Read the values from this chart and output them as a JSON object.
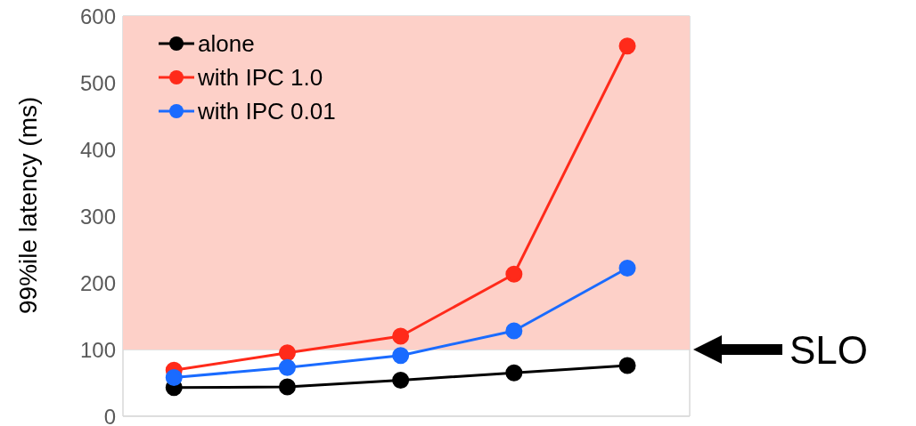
{
  "chart_data": {
    "type": "line",
    "ylabel": "99%ile latency (ms)",
    "categories": [
      null,
      null,
      null,
      null,
      null
    ],
    "series": [
      {
        "name": "alone",
        "color": "#000000",
        "values": [
          43,
          44,
          54,
          65,
          76
        ]
      },
      {
        "name": "with IPC 1.0",
        "color": "#ff2a1a",
        "values": [
          69,
          95,
          120,
          213,
          555
        ]
      },
      {
        "name": "with IPC 0.01",
        "color": "#1a6bff",
        "values": [
          58,
          73,
          91,
          128,
          222
        ]
      }
    ],
    "ylim": [
      0,
      600
    ],
    "yticks": [
      0,
      100,
      200,
      300,
      400,
      500,
      600
    ],
    "tick_labels": "y",
    "grid": true,
    "legend": "top left",
    "marker": "circle",
    "line_style": "solid",
    "bands": [
      {
        "axis": "y",
        "from": 100,
        "to": 600,
        "label": "SLO",
        "color": "#fdd0c8"
      }
    ]
  }
}
